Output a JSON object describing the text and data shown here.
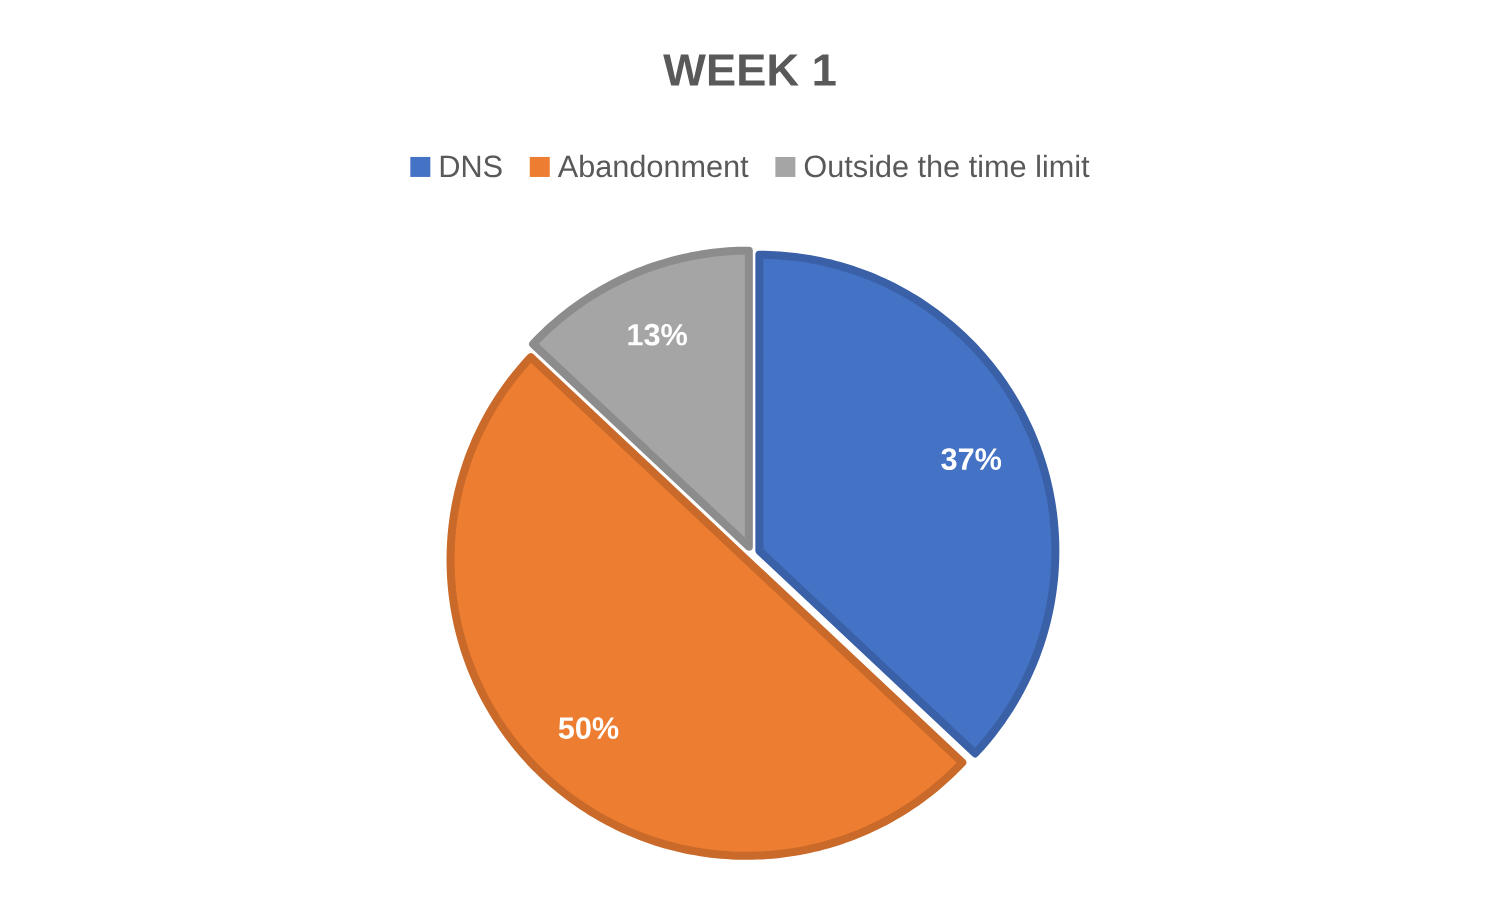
{
  "chart_data": {
    "type": "pie",
    "title": "WEEK 1",
    "categories": [
      "DNS",
      "Abandonment",
      "Outside the time limit"
    ],
    "values": [
      37,
      50,
      13
    ],
    "value_labels": [
      "37%",
      "50%",
      "13%"
    ],
    "colors": [
      "#4472c4",
      "#ed7d31",
      "#a5a5a5"
    ],
    "legend": "top"
  }
}
